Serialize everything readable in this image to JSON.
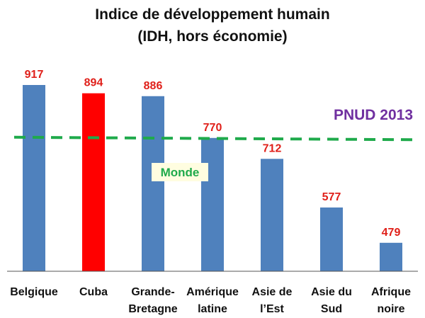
{
  "chart_data": {
    "type": "bar",
    "title": "Indice de développement humain",
    "subtitle": "(IDH, hors économie)",
    "categories": [
      [
        "Belgique"
      ],
      [
        "Cuba"
      ],
      [
        "Grande-",
        "Bretagne"
      ],
      [
        "Amérique",
        "latine"
      ],
      [
        "Asie de",
        "l’Est"
      ],
      [
        "Asie du",
        "Sud"
      ],
      [
        "Afrique",
        "noire"
      ]
    ],
    "values": [
      917,
      894,
      886,
      770,
      712,
      577,
      479
    ],
    "value_labels": [
      "917",
      "894",
      "886",
      "770",
      "712",
      "577",
      "479"
    ],
    "highlight_index": 1,
    "ylim": [
      400,
      950
    ],
    "grid": false,
    "reference_line": {
      "label": "Monde",
      "value_start": 772,
      "value_end": 765,
      "color": "#1faa4b"
    },
    "source_note": "PNUD 2013",
    "colors": {
      "bar": "#4f81bd",
      "highlight": "#ff0000",
      "value_label": "#e0201a",
      "source_note": "#7030a0",
      "reference_line": "#1faa4b",
      "axis": "#555555"
    }
  }
}
